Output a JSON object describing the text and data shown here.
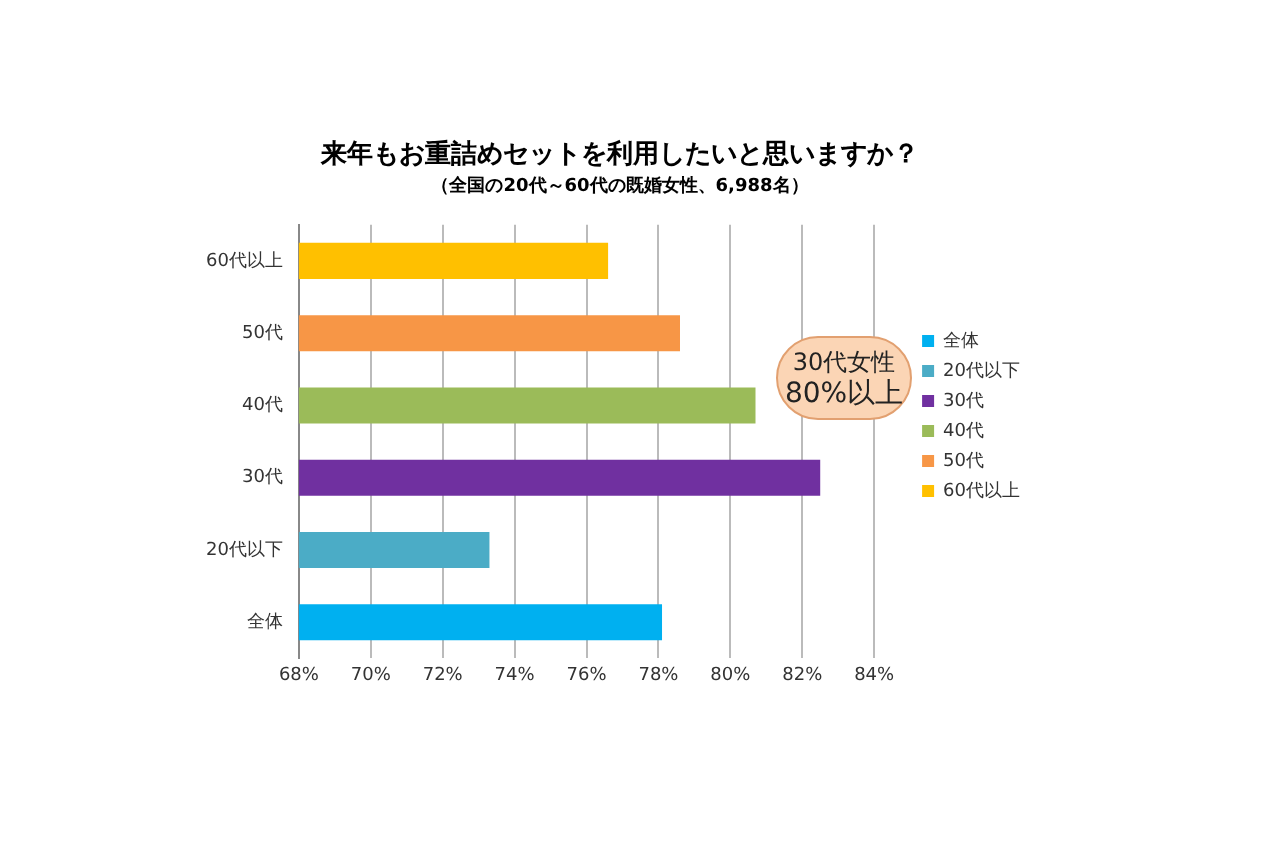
{
  "chart_data": {
    "type": "bar",
    "orientation": "horizontal",
    "title": "来年もお重詰めセットを利用したいと思いますか？",
    "subtitle": "（全国の20代～60代の既婚女性、6,988名）",
    "categories": [
      "60代以上",
      "50代",
      "40代",
      "30代",
      "20代以下",
      "全体"
    ],
    "series": [
      {
        "name": "全体",
        "color": "#00b0f0",
        "values": [
          null,
          null,
          null,
          null,
          null,
          78.1
        ]
      },
      {
        "name": "20代以下",
        "color": "#4bacc6",
        "values": [
          null,
          null,
          null,
          null,
          73.3,
          null
        ]
      },
      {
        "name": "30代",
        "color": "#7030a0",
        "values": [
          null,
          null,
          null,
          82.5,
          null,
          null
        ]
      },
      {
        "name": "40代",
        "color": "#9bbb59",
        "values": [
          null,
          null,
          80.7,
          null,
          null,
          null
        ]
      },
      {
        "name": "50代",
        "color": "#f79646",
        "values": [
          null,
          78.6,
          null,
          null,
          null,
          null
        ]
      },
      {
        "name": "60代以上",
        "color": "#ffc000",
        "values": [
          76.6,
          null,
          null,
          null,
          null,
          null
        ]
      }
    ],
    "xlim": [
      68,
      85
    ],
    "xticks": [
      {
        "value": 68,
        "label": "68%"
      },
      {
        "value": 70,
        "label": "70%"
      },
      {
        "value": 72,
        "label": "72%"
      },
      {
        "value": 74,
        "label": "74%"
      },
      {
        "value": 76,
        "label": "76%"
      },
      {
        "value": 78,
        "label": "78%"
      },
      {
        "value": 80,
        "label": "80%"
      },
      {
        "value": 82,
        "label": "82%"
      },
      {
        "value": 84,
        "label": "84%"
      }
    ],
    "grid": "x",
    "legend": "right",
    "annotations": [
      "30代女性\n80%以上"
    ]
  }
}
